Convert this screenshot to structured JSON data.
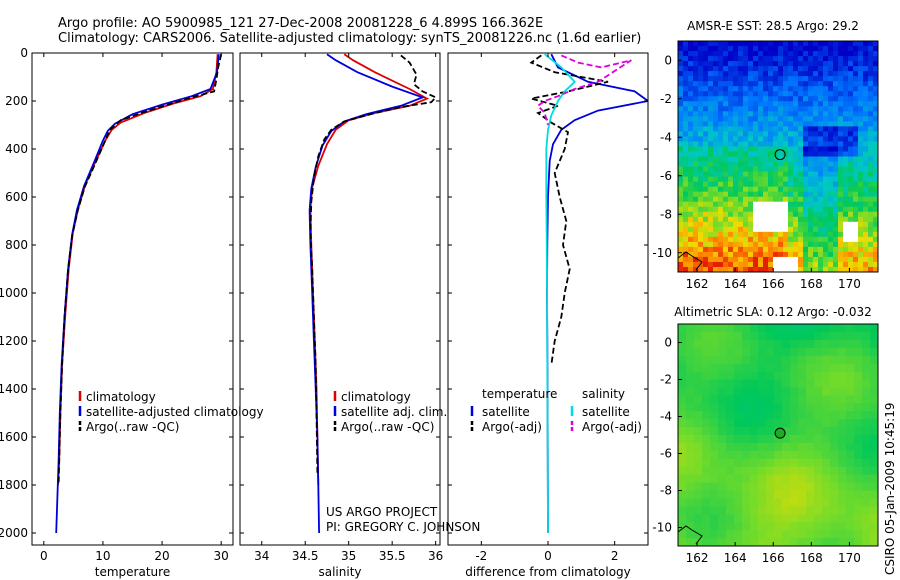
{
  "header": {
    "line1": "Argo profile: AO 5900985_121 27-Dec-2008 20081228_6 4.899S 166.362E",
    "line2": "Climatology: CARS2006. Satellite-adjusted climatology: synTS_20081226.nc (1.6d earlier)"
  },
  "chart_data": [
    {
      "type": "line",
      "name": "temperature-profile",
      "xlabel": "temperature",
      "ylabel": "",
      "xlim": [
        -2,
        32
      ],
      "ylim": [
        2050,
        0
      ],
      "xticks": [
        0,
        10,
        20,
        30
      ],
      "yticks": [
        0,
        200,
        400,
        600,
        800,
        1000,
        1200,
        1400,
        1600,
        1800,
        2000
      ],
      "legend": [
        "climatology",
        "satellite-adjusted climatology",
        "Argo(..raw -QC)"
      ],
      "series": [
        {
          "name": "climatology",
          "color": "#dd0000",
          "x": [
            29.4,
            29.2,
            28.6,
            26.5,
            22,
            17,
            13,
            11.5,
            10.5,
            8.8,
            7,
            5.8,
            4.9,
            4.2,
            3.6,
            3.1,
            2.8,
            2.6,
            2.4
          ],
          "y": [
            5,
            80,
            150,
            180,
            210,
            250,
            290,
            320,
            360,
            450,
            550,
            650,
            750,
            900,
            1100,
            1300,
            1500,
            1700,
            1800
          ]
        },
        {
          "name": "satellite-adjusted climatology",
          "color": "#0000dd",
          "x": [
            29.6,
            29.3,
            28.2,
            25,
            20,
            15,
            12,
            10.8,
            10,
            8.5,
            6.8,
            5.6,
            4.8,
            4.1,
            3.5,
            3.0,
            2.7,
            2.5,
            2.3,
            2.1
          ],
          "y": [
            5,
            80,
            150,
            180,
            215,
            255,
            295,
            325,
            365,
            455,
            555,
            655,
            755,
            900,
            1100,
            1300,
            1500,
            1700,
            1850,
            2000
          ]
        },
        {
          "name": "Argo(..raw -QC)",
          "color": "#000000",
          "dash": true,
          "x": [
            30,
            29.5,
            29.2,
            28.8,
            25,
            21,
            16.5,
            13,
            11.2,
            10.3,
            8.7,
            6.9,
            5.7,
            4.8,
            4.1,
            3.5,
            3.1,
            2.8,
            2.6,
            2.5
          ],
          "y": [
            5,
            60,
            110,
            160,
            185,
            215,
            250,
            280,
            320,
            370,
            460,
            560,
            660,
            760,
            900,
            1100,
            1300,
            1500,
            1700,
            1800
          ]
        }
      ]
    },
    {
      "type": "line",
      "name": "salinity-profile",
      "xlabel": "salinity",
      "xlim": [
        33.75,
        36.05
      ],
      "ylim": [
        2050,
        0
      ],
      "xticks": [
        34,
        34.5,
        35,
        35.5,
        36
      ],
      "xticklabels": [
        "34",
        "34.5",
        "35",
        "35.5",
        "36"
      ],
      "yticks": [
        0,
        200,
        400,
        600,
        800,
        1000,
        1200,
        1400,
        1600,
        1800,
        2000
      ],
      "legend": [
        "climatology",
        "satellite adj. clim.",
        "Argo(..raw -QC)"
      ],
      "annotation": [
        "US ARGO PROJECT",
        "PI: GREGORY C. JOHNSON"
      ],
      "series": [
        {
          "name": "climatology",
          "color": "#dd0000",
          "x": [
            34.95,
            35.05,
            35.3,
            35.7,
            35.9,
            35.7,
            35.3,
            35.0,
            34.85,
            34.75,
            34.65,
            34.58,
            34.56,
            34.57,
            34.59,
            34.61,
            34.63,
            34.64,
            34.65
          ],
          "y": [
            5,
            30,
            80,
            150,
            190,
            220,
            250,
            280,
            320,
            380,
            470,
            560,
            650,
            800,
            1000,
            1200,
            1400,
            1600,
            1800
          ]
        },
        {
          "name": "satellite adj. clim.",
          "color": "#0000dd",
          "x": [
            34.75,
            34.85,
            35.1,
            35.5,
            35.85,
            35.6,
            35.2,
            34.95,
            34.8,
            34.7,
            34.62,
            34.57,
            34.55,
            34.56,
            34.58,
            34.6,
            34.62,
            34.64,
            34.65,
            34.66
          ],
          "y": [
            5,
            30,
            80,
            140,
            185,
            220,
            255,
            285,
            325,
            385,
            475,
            565,
            655,
            800,
            1000,
            1200,
            1400,
            1600,
            1800,
            2000
          ]
        },
        {
          "name": "Argo(..raw -QC)",
          "color": "#000000",
          "dash": true,
          "x": [
            35.6,
            35.7,
            35.78,
            35.75,
            35.85,
            36.0,
            35.95,
            35.6,
            35.25,
            34.95,
            34.8,
            34.72,
            34.65,
            34.6,
            34.57,
            34.56,
            34.58,
            34.6,
            34.62,
            34.63,
            34.64
          ],
          "y": [
            10,
            40,
            90,
            130,
            160,
            185,
            205,
            225,
            255,
            285,
            320,
            360,
            430,
            520,
            620,
            750,
            900,
            1100,
            1300,
            1500,
            1750
          ]
        }
      ]
    },
    {
      "type": "line",
      "name": "difference-profile",
      "xlabel": "difference from climatology",
      "xlim": [
        -3,
        3
      ],
      "ylim": [
        2050,
        0
      ],
      "xticks": [
        -2,
        0,
        2
      ],
      "yticks": [
        0,
        200,
        400,
        600,
        800,
        1000,
        1200,
        1400,
        1600,
        1800,
        2000
      ],
      "legend_headers": [
        "temperature",
        "salinity"
      ],
      "legend": [
        "satellite",
        "Argo(-adj)",
        "satellite",
        "Argo(-adj)"
      ],
      "series": [
        {
          "name": "satellite",
          "group": "temperature",
          "color": "#0000dd",
          "x": [
            0.1,
            0.3,
            1.2,
            2.6,
            3.0,
            1.5,
            0.8,
            0.4,
            0.15,
            0.05,
            0.0,
            -0.02,
            -0.03,
            -0.02,
            -0.01,
            0.0
          ],
          "y": [
            5,
            60,
            120,
            160,
            200,
            240,
            280,
            320,
            380,
            450,
            600,
            800,
            1000,
            1200,
            1600,
            2000
          ]
        },
        {
          "name": "Argo(-adj)",
          "group": "temperature",
          "color": "#000000",
          "dash": true,
          "x": [
            -0.2,
            -0.5,
            0.2,
            1.8,
            0.6,
            -0.5,
            0.3,
            -0.3,
            0.1,
            0.6,
            0.5,
            0.2,
            0.35,
            0.55,
            0.45,
            0.65,
            0.5,
            0.4,
            0.2,
            0.1
          ],
          "y": [
            10,
            40,
            80,
            120,
            160,
            190,
            220,
            250,
            290,
            330,
            400,
            500,
            600,
            700,
            800,
            900,
            1000,
            1100,
            1200,
            1300
          ]
        },
        {
          "name": "satellite",
          "group": "salinity",
          "color": "#00dddd",
          "x": [
            -0.1,
            0.4,
            0.8,
            0.5,
            0.3,
            0.1,
            0.0,
            -0.05,
            -0.05,
            -0.03,
            -0.02,
            -0.01,
            0.0
          ],
          "y": [
            5,
            60,
            120,
            160,
            200,
            260,
            320,
            400,
            600,
            900,
            1300,
            1700,
            2000
          ]
        },
        {
          "name": "Argo(-adj)",
          "group": "salinity",
          "color": "#dd00dd",
          "dash": true,
          "x": [
            0.4,
            0.9,
            1.6,
            2.5,
            1.5,
            0.8,
            0.3,
            -0.1,
            -0.3,
            -0.1,
            0.0
          ],
          "y": [
            10,
            40,
            60,
            30,
            120,
            150,
            180,
            200,
            220,
            250,
            300
          ]
        }
      ]
    },
    {
      "type": "heatmap",
      "name": "sst-map",
      "title": "AMSR-E SST: 28.5  Argo: 29.2",
      "xlim": [
        161,
        171.5
      ],
      "ylim": [
        -11,
        1
      ],
      "xticks": [
        162,
        164,
        166,
        168,
        170
      ],
      "yticks": [
        0,
        -2,
        -4,
        -6,
        -8,
        -10
      ],
      "marker": {
        "lon": 166.36,
        "lat": -4.9
      }
    },
    {
      "type": "heatmap",
      "name": "sla-map",
      "title": "Altimetric SLA: 0.12  Argo: -0.032",
      "xlim": [
        161,
        171.5
      ],
      "ylim": [
        -11,
        1
      ],
      "xticks": [
        162,
        164,
        166,
        168,
        170
      ],
      "yticks": [
        0,
        -2,
        -4,
        -6,
        -8,
        -10
      ],
      "marker": {
        "lon": 166.36,
        "lat": -4.9
      }
    }
  ],
  "footer": {
    "credit": "CSIRO 05-Jan-2009 10:45:19"
  }
}
